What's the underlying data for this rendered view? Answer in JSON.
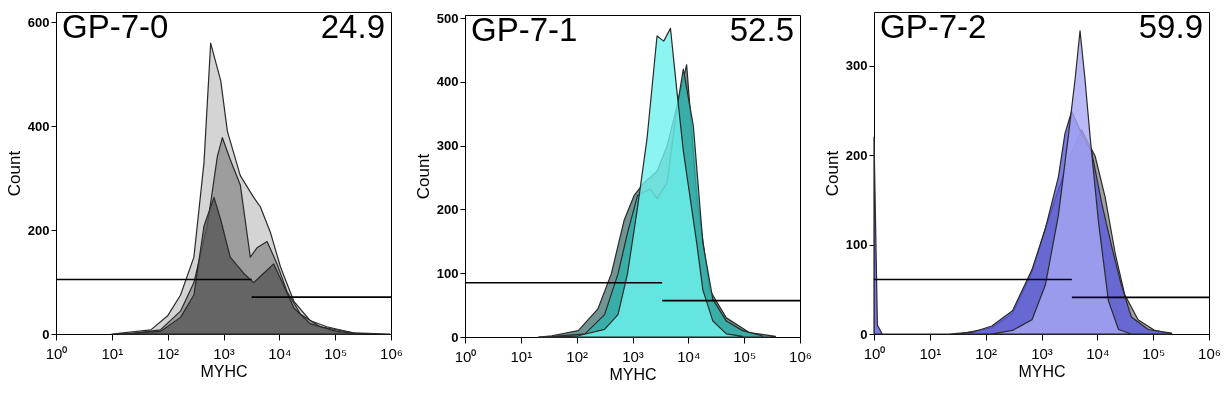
{
  "chart_data": [
    {
      "type": "area",
      "title": "GP-7-0",
      "annotations": [
        "24.9"
      ],
      "xlabel": "MYHC",
      "ylabel": "Count",
      "log": "x",
      "xlim": [
        1,
        1000000
      ],
      "xticks": [
        {
          "value": 1,
          "label": "10⁰"
        },
        {
          "value": 10,
          "label": "10¹"
        },
        {
          "value": 100,
          "label": "10²"
        },
        {
          "value": 1000,
          "label": "10³"
        },
        {
          "value": 10000,
          "label": "10⁴"
        },
        {
          "value": 100000,
          "label": "10⁵"
        },
        {
          "value": 1000000,
          "label": "10⁶"
        }
      ],
      "ylim": [
        0,
        620
      ],
      "yticks": [
        0,
        200,
        400,
        600
      ],
      "series": [
        {
          "color": "#c9c9c9",
          "x": [
            10,
            50,
            100,
            170,
            295,
            447,
            589,
            676,
            891,
            1175,
            2000,
            3470,
            4570,
            6900,
            10500,
            18200,
            35500,
            70800,
            214000,
            955000
          ],
          "values": [
            0,
            8,
            35,
            75,
            148,
            330,
            560,
            536,
            488,
            390,
            305,
            263,
            245,
            196,
            129,
            63,
            26,
            14,
            2,
            0
          ]
        },
        {
          "color": "#8f8f8f",
          "x": [
            19,
            74,
            170,
            295,
            513,
            776,
            955,
            1320,
            2000,
            3020,
            3980,
            6030,
            9120,
            13800,
            24000,
            53700,
            214000
          ],
          "values": [
            0,
            8,
            44,
            99,
            208,
            342,
            378,
            336,
            287,
            148,
            166,
            178,
            135,
            81,
            38,
            14,
            2
          ]
        },
        {
          "color": "#585858",
          "x": [
            14,
            74,
            170,
            295,
            447,
            676,
            891,
            1320,
            2290,
            3470,
            5250,
            7940,
            12000,
            18200,
            35500,
            105000,
            282000
          ],
          "values": [
            0,
            5,
            32,
            75,
            208,
            263,
            220,
            148,
            117,
            99,
            117,
            135,
            93,
            50,
            20,
            5,
            0
          ]
        },
        {
          "type": "line",
          "color": "#000000",
          "x": [
            1,
            3200
          ],
          "values": [
            105,
            105
          ]
        },
        {
          "type": "line",
          "color": "#000000",
          "x": [
            3200,
            1000000
          ],
          "values": [
            71,
            71
          ]
        }
      ]
    },
    {
      "type": "area",
      "title": "GP-7-1",
      "annotations": [
        "52.5"
      ],
      "xlabel": "MYHC",
      "ylabel": "Count",
      "log": "x",
      "xlim": [
        1,
        1000000
      ],
      "xticks": [
        {
          "value": 1,
          "label": "10⁰"
        },
        {
          "value": 10,
          "label": "10¹"
        },
        {
          "value": 100,
          "label": "10²"
        },
        {
          "value": 1000,
          "label": "10³"
        },
        {
          "value": 10000,
          "label": "10⁴"
        },
        {
          "value": 100000,
          "label": "10⁵"
        },
        {
          "value": 1000000,
          "label": "10⁶"
        }
      ],
      "ylim": [
        0,
        505
      ],
      "yticks": [
        0,
        100,
        200,
        300,
        400,
        500
      ],
      "series": [
        {
          "color": "#4e7b78",
          "x": [
            21,
            36,
            107,
            240,
            417,
            708,
            1070,
            1620,
            2750,
            4170,
            6170,
            9330,
            14100,
            24000,
            47900,
            123000,
            363000
          ],
          "values": [
            0,
            2,
            10,
            44,
            99,
            183,
            222,
            242,
            260,
            300,
            360,
            427,
            222,
            74,
            30,
            7,
            1
          ]
        },
        {
          "color": "#2cb4ae",
          "x": [
            28,
            141,
            316,
            550,
            813,
            1230,
            2090,
            2750,
            4170,
            6170,
            8130,
            12300,
            18200,
            27500,
            47900,
            93300,
            209000
          ],
          "values": [
            0,
            5,
            35,
            99,
            163,
            222,
            232,
            217,
            242,
            356,
            420,
            331,
            148,
            59,
            25,
            10,
            2
          ]
        },
        {
          "color": "#6ff3ee",
          "x": [
            21,
            107,
            316,
            550,
            813,
            1230,
            1820,
            2750,
            3630,
            4790,
            6170,
            8130,
            14100,
            18200,
            27500,
            47900,
            93300
          ],
          "values": [
            0,
            2,
            12,
            35,
            99,
            203,
            311,
            472,
            464,
            484,
            390,
            292,
            148,
            74,
            25,
            5,
            1
          ]
        },
        {
          "type": "line",
          "color": "#000000",
          "x": [
            1,
            3400
          ],
          "values": [
            85,
            85
          ]
        },
        {
          "type": "line",
          "color": "#000000",
          "x": [
            3400,
            1000000
          ],
          "values": [
            57,
            57
          ]
        }
      ]
    },
    {
      "type": "area",
      "title": "GP-7-2",
      "annotations": [
        "59.9"
      ],
      "xlabel": "MYHC",
      "ylabel": "Count",
      "log": "x",
      "xlim": [
        1,
        1000000
      ],
      "xticks": [
        {
          "value": 1,
          "label": "10⁰"
        },
        {
          "value": 10,
          "label": "10¹"
        },
        {
          "value": 100,
          "label": "10²"
        },
        {
          "value": 1000,
          "label": "10³"
        },
        {
          "value": 10000,
          "label": "10⁴"
        },
        {
          "value": 100000,
          "label": "10⁵"
        },
        {
          "value": 1000000,
          "label": "10⁶"
        }
      ],
      "ylim": [
        0,
        360
      ],
      "yticks": [
        0,
        100,
        200,
        300
      ],
      "series": [
        {
          "color": "#8a8a8a",
          "x": [
            33,
            129,
            302,
            676,
            1175,
            2000,
            3470,
            5250,
            9120,
            13800,
            20900,
            30900,
            53700,
            107000,
            214000
          ],
          "values": [
            0,
            7,
            23,
            69,
            118,
            161,
            203,
            228,
            199,
            153,
            90,
            44,
            16,
            4,
            0
          ]
        },
        {
          "color": "#5a5ae0",
          "x": [
            1,
            1.15,
            1.4,
            22,
            58,
            129,
            302,
            676,
            1175,
            2000,
            2630,
            3470,
            5250,
            7940,
            12000,
            18200,
            26900,
            40700,
            81300,
            214000
          ],
          "values": [
            220,
            10,
            0,
            0,
            2,
            9,
            26,
            72,
            118,
            175,
            224,
            249,
            224,
            203,
            146,
            97,
            55,
            19,
            5,
            1
          ]
        },
        {
          "color": "#a8a8f5",
          "x": [
            129,
            302,
            676,
            1175,
            2000,
            3020,
            3980,
            4900,
            6030,
            7410,
            10500,
            15800,
            24000,
            40700
          ],
          "values": [
            0,
            4,
            16,
            55,
            132,
            221,
            284,
            339,
            284,
            221,
            125,
            37,
            5,
            0
          ]
        },
        {
          "type": "line",
          "color": "#000000",
          "x": [
            1,
            3500
          ],
          "values": [
            61,
            61
          ]
        },
        {
          "type": "line",
          "color": "#000000",
          "x": [
            3500,
            1000000
          ],
          "values": [
            41,
            41
          ]
        }
      ]
    }
  ]
}
